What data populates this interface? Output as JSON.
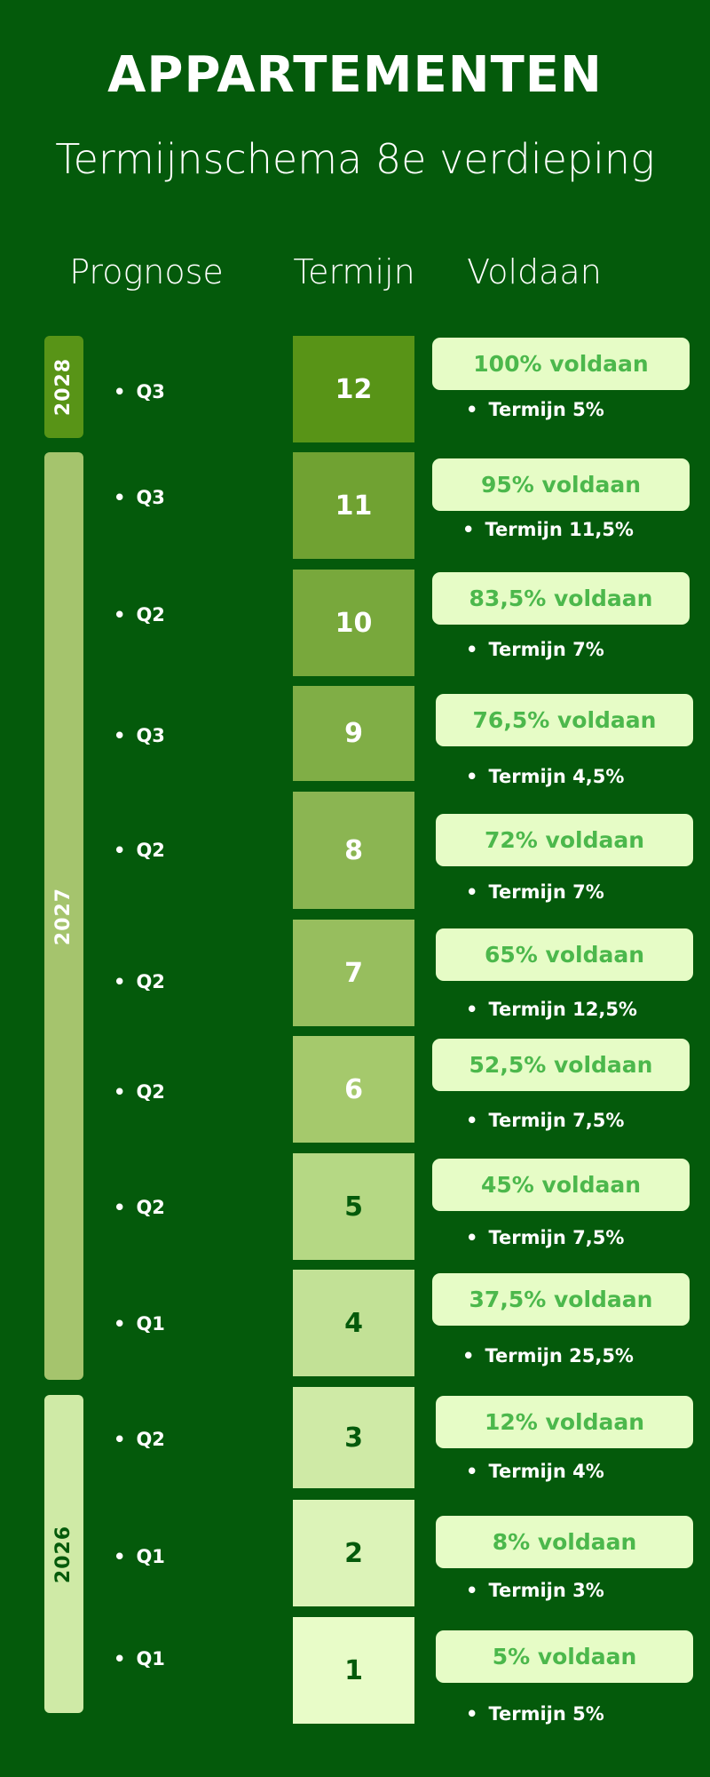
{
  "header": {
    "title": "APPARTEMENTEN",
    "subtitle": "Termijnschema 8e verdieping"
  },
  "columns": {
    "prognose": "Prognose",
    "termijn": "Termijn",
    "voldaan": "Voldaan"
  },
  "colors": {
    "background": "#045a0b",
    "pill": "#e6fcc6",
    "pill_text": "#4cb84c"
  },
  "years": [
    {
      "label": "2028",
      "color": "#589417",
      "text_color": "#ffffff"
    },
    {
      "label": "2027",
      "color": "#a5c46d",
      "text_color": "#ffffff"
    },
    {
      "label": "2026",
      "color": "#cfeaa6",
      "text_color": "#045a0b"
    }
  ],
  "rows": [
    {
      "term": "12",
      "quarter": "Q3",
      "voldaan": "100% voldaan",
      "termijn": "Termijn 5%",
      "color": "#589417",
      "num_color": "#ffffff"
    },
    {
      "term": "11",
      "quarter": "Q3",
      "voldaan": "95% voldaan",
      "termijn": "Termijn 11,5%",
      "color": "#70a232",
      "num_color": "#ffffff"
    },
    {
      "term": "10",
      "quarter": "Q2",
      "voldaan": "83,5% voldaan",
      "termijn": "Termijn 7%",
      "color": "#78a83c",
      "num_color": "#ffffff"
    },
    {
      "term": "9",
      "quarter": "Q3",
      "voldaan": "76,5% voldaan",
      "termijn": "Termijn 4,5%",
      "color": "#80ae46",
      "num_color": "#ffffff"
    },
    {
      "term": "8",
      "quarter": "Q2",
      "voldaan": "72% voldaan",
      "termijn": "Termijn 7%",
      "color": "#8bb552",
      "num_color": "#ffffff"
    },
    {
      "term": "7",
      "quarter": "Q2",
      "voldaan": "65% voldaan",
      "termijn": "Termijn 12,5%",
      "color": "#97be5e",
      "num_color": "#ffffff"
    },
    {
      "term": "6",
      "quarter": "Q2",
      "voldaan": "52,5% voldaan",
      "termijn": "Termijn 7,5%",
      "color": "#a5c96c",
      "num_color": "#ffffff"
    },
    {
      "term": "5",
      "quarter": "Q2",
      "voldaan": "45% voldaan",
      "termijn": "Termijn 7,5%",
      "color": "#b5d884",
      "num_color": "#045a0b"
    },
    {
      "term": "4",
      "quarter": "Q1",
      "voldaan": "37,5% voldaan",
      "termijn": "Termijn 25,5%",
      "color": "#c2e196",
      "num_color": "#045a0b"
    },
    {
      "term": "3",
      "quarter": "Q2",
      "voldaan": "12% voldaan",
      "termijn": "Termijn 4%",
      "color": "#cfeaa6",
      "num_color": "#045a0b"
    },
    {
      "term": "2",
      "quarter": "Q1",
      "voldaan": "8% voldaan",
      "termijn": "Termijn 3%",
      "color": "#dcf3b8",
      "num_color": "#045a0b"
    },
    {
      "term": "1",
      "quarter": "Q1",
      "voldaan": "5% voldaan",
      "termijn": "Termijn 5%",
      "color": "#e8fcc8",
      "num_color": "#045a0b"
    }
  ]
}
